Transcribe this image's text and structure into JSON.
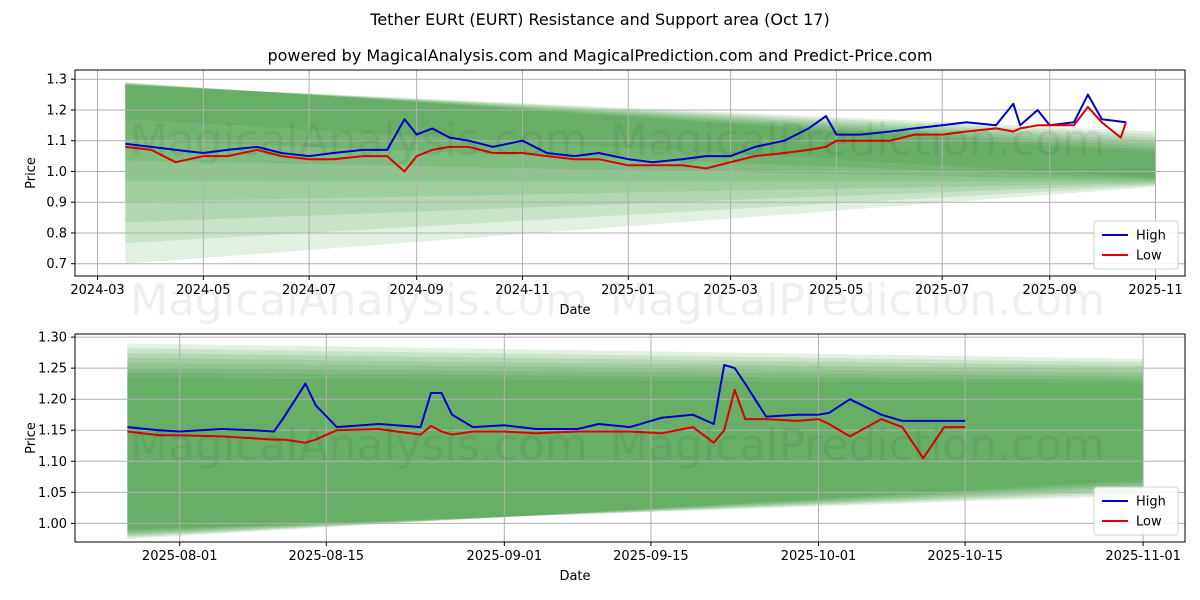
{
  "title": "Tether EURt (EURT) Resistance and Support area (Oct 17)",
  "subtitle": "powered by MagicalAnalysis.com and MagicalPrediction.com and Predict-Price.com",
  "watermarks": [
    "MagicalAnalysis.com",
    "MagicalPrediction.com"
  ],
  "colors": {
    "high": "#0000cc",
    "low": "#dd0000",
    "band": "#228b22"
  },
  "chart_data": [
    {
      "type": "line",
      "xlabel": "Date",
      "ylabel": "Price",
      "xlim": [
        "2024-02-17",
        "2025-11-18"
      ],
      "ylim": [
        0.66,
        1.33
      ],
      "grid": true,
      "legend": "bottom-right",
      "xticks": [
        "2024-03",
        "2024-05",
        "2024-07",
        "2024-09",
        "2024-11",
        "2025-01",
        "2025-03",
        "2025-05",
        "2025-07",
        "2025-09",
        "2025-11"
      ],
      "yticks": [
        "0.7",
        "0.8",
        "0.9",
        "1.0",
        "1.1",
        "1.2",
        "1.3"
      ],
      "band": {
        "x": [
          "2024-03-17",
          "2025-11-01"
        ],
        "upper": [
          [
            1.28,
            1.13
          ],
          [
            1.29,
            1.06
          ]
        ],
        "lower": [
          [
            0.7,
            0.95
          ],
          [
            1.17,
            0.98
          ]
        ]
      },
      "series": [
        {
          "name": "High",
          "x": [
            "2024-03-17",
            "2024-04-01",
            "2024-04-15",
            "2024-05-01",
            "2024-05-15",
            "2024-06-01",
            "2024-06-15",
            "2024-07-01",
            "2024-07-15",
            "2024-08-01",
            "2024-08-15",
            "2024-08-25",
            "2024-09-01",
            "2024-09-10",
            "2024-09-20",
            "2024-10-01",
            "2024-10-15",
            "2024-11-01",
            "2024-11-15",
            "2024-12-01",
            "2024-12-15",
            "2025-01-01",
            "2025-01-15",
            "2025-02-01",
            "2025-02-15",
            "2025-03-01",
            "2025-03-15",
            "2025-04-01",
            "2025-04-15",
            "2025-04-25",
            "2025-05-01",
            "2025-05-15",
            "2025-06-01",
            "2025-06-15",
            "2025-07-01",
            "2025-07-15",
            "2025-08-01",
            "2025-08-11",
            "2025-08-15",
            "2025-08-25",
            "2025-09-01",
            "2025-09-15",
            "2025-09-23",
            "2025-10-01",
            "2025-10-15"
          ],
          "values": [
            1.09,
            1.08,
            1.07,
            1.06,
            1.07,
            1.08,
            1.06,
            1.05,
            1.06,
            1.07,
            1.07,
            1.17,
            1.12,
            1.14,
            1.11,
            1.1,
            1.08,
            1.1,
            1.06,
            1.05,
            1.06,
            1.04,
            1.03,
            1.04,
            1.05,
            1.05,
            1.08,
            1.1,
            1.14,
            1.18,
            1.12,
            1.12,
            1.13,
            1.14,
            1.15,
            1.16,
            1.15,
            1.22,
            1.15,
            1.2,
            1.15,
            1.16,
            1.25,
            1.17,
            1.16
          ]
        },
        {
          "name": "Low",
          "x": [
            "2024-03-17",
            "2024-04-01",
            "2024-04-15",
            "2024-05-01",
            "2024-05-15",
            "2024-06-01",
            "2024-06-15",
            "2024-07-01",
            "2024-07-15",
            "2024-08-01",
            "2024-08-15",
            "2024-08-25",
            "2024-09-01",
            "2024-09-10",
            "2024-09-20",
            "2024-10-01",
            "2024-10-15",
            "2024-11-01",
            "2024-11-15",
            "2024-12-01",
            "2024-12-15",
            "2025-01-01",
            "2025-01-15",
            "2025-02-01",
            "2025-02-15",
            "2025-03-01",
            "2025-03-15",
            "2025-04-01",
            "2025-04-15",
            "2025-04-25",
            "2025-05-01",
            "2025-05-15",
            "2025-06-01",
            "2025-06-15",
            "2025-07-01",
            "2025-07-15",
            "2025-08-01",
            "2025-08-11",
            "2025-08-15",
            "2025-08-25",
            "2025-09-01",
            "2025-09-15",
            "2025-09-23",
            "2025-10-01",
            "2025-10-12",
            "2025-10-15"
          ],
          "values": [
            1.08,
            1.07,
            1.03,
            1.05,
            1.05,
            1.07,
            1.05,
            1.04,
            1.04,
            1.05,
            1.05,
            1.0,
            1.05,
            1.07,
            1.08,
            1.08,
            1.06,
            1.06,
            1.05,
            1.04,
            1.04,
            1.02,
            1.02,
            1.02,
            1.01,
            1.03,
            1.05,
            1.06,
            1.07,
            1.08,
            1.1,
            1.1,
            1.1,
            1.12,
            1.12,
            1.13,
            1.14,
            1.13,
            1.14,
            1.15,
            1.15,
            1.15,
            1.21,
            1.16,
            1.11,
            1.16
          ]
        }
      ]
    },
    {
      "type": "line",
      "xlabel": "Date",
      "ylabel": "Price",
      "xlim": [
        "2025-07-22",
        "2025-11-05"
      ],
      "ylim": [
        0.97,
        1.305
      ],
      "grid": true,
      "legend": "bottom-right",
      "xticks": [
        "2025-08-01",
        "2025-08-15",
        "2025-09-01",
        "2025-09-15",
        "2025-10-01",
        "2025-10-15",
        "2025-11-01"
      ],
      "yticks": [
        "1.00",
        "1.05",
        "1.10",
        "1.15",
        "1.20",
        "1.25",
        "1.30"
      ],
      "band": {
        "x": [
          "2025-07-27",
          "2025-11-01"
        ],
        "upper": [
          [
            1.235,
            1.225
          ],
          [
            1.29,
            1.265
          ]
        ],
        "lower": [
          [
            0.99,
            1.045
          ],
          [
            0.975,
            1.07
          ]
        ]
      },
      "series": [
        {
          "name": "High",
          "x": [
            "2025-07-27",
            "2025-07-30",
            "2025-08-01",
            "2025-08-05",
            "2025-08-08",
            "2025-08-10",
            "2025-08-11",
            "2025-08-13",
            "2025-08-14",
            "2025-08-16",
            "2025-08-20",
            "2025-08-24",
            "2025-08-25",
            "2025-08-26",
            "2025-08-27",
            "2025-08-29",
            "2025-09-01",
            "2025-09-04",
            "2025-09-08",
            "2025-09-10",
            "2025-09-13",
            "2025-09-16",
            "2025-09-19",
            "2025-09-21",
            "2025-09-22",
            "2025-09-23",
            "2025-09-24",
            "2025-09-26",
            "2025-09-29",
            "2025-10-01",
            "2025-10-02",
            "2025-10-04",
            "2025-10-07",
            "2025-10-09",
            "2025-10-11",
            "2025-10-15"
          ],
          "values": [
            1.155,
            1.15,
            1.148,
            1.152,
            1.15,
            1.148,
            1.172,
            1.225,
            1.19,
            1.155,
            1.16,
            1.155,
            1.21,
            1.21,
            1.175,
            1.155,
            1.158,
            1.152,
            1.152,
            1.16,
            1.155,
            1.17,
            1.175,
            1.16,
            1.255,
            1.25,
            1.225,
            1.172,
            1.175,
            1.175,
            1.178,
            1.2,
            1.175,
            1.165,
            1.165,
            1.165
          ]
        },
        {
          "name": "Low",
          "x": [
            "2025-07-27",
            "2025-07-30",
            "2025-08-01",
            "2025-08-05",
            "2025-08-08",
            "2025-08-10",
            "2025-08-11",
            "2025-08-13",
            "2025-08-14",
            "2025-08-16",
            "2025-08-20",
            "2025-08-24",
            "2025-08-25",
            "2025-08-26",
            "2025-08-27",
            "2025-08-29",
            "2025-09-01",
            "2025-09-04",
            "2025-09-08",
            "2025-09-10",
            "2025-09-13",
            "2025-09-16",
            "2025-09-19",
            "2025-09-21",
            "2025-09-22",
            "2025-09-23",
            "2025-09-24",
            "2025-09-26",
            "2025-09-29",
            "2025-10-01",
            "2025-10-02",
            "2025-10-04",
            "2025-10-07",
            "2025-10-09",
            "2025-10-11",
            "2025-10-13",
            "2025-10-15"
          ],
          "values": [
            1.148,
            1.142,
            1.142,
            1.14,
            1.137,
            1.135,
            1.135,
            1.13,
            1.135,
            1.15,
            1.152,
            1.143,
            1.157,
            1.148,
            1.143,
            1.148,
            1.148,
            1.145,
            1.148,
            1.148,
            1.148,
            1.145,
            1.155,
            1.13,
            1.15,
            1.215,
            1.168,
            1.168,
            1.165,
            1.168,
            1.16,
            1.14,
            1.168,
            1.155,
            1.105,
            1.155,
            1.155
          ]
        }
      ]
    }
  ]
}
